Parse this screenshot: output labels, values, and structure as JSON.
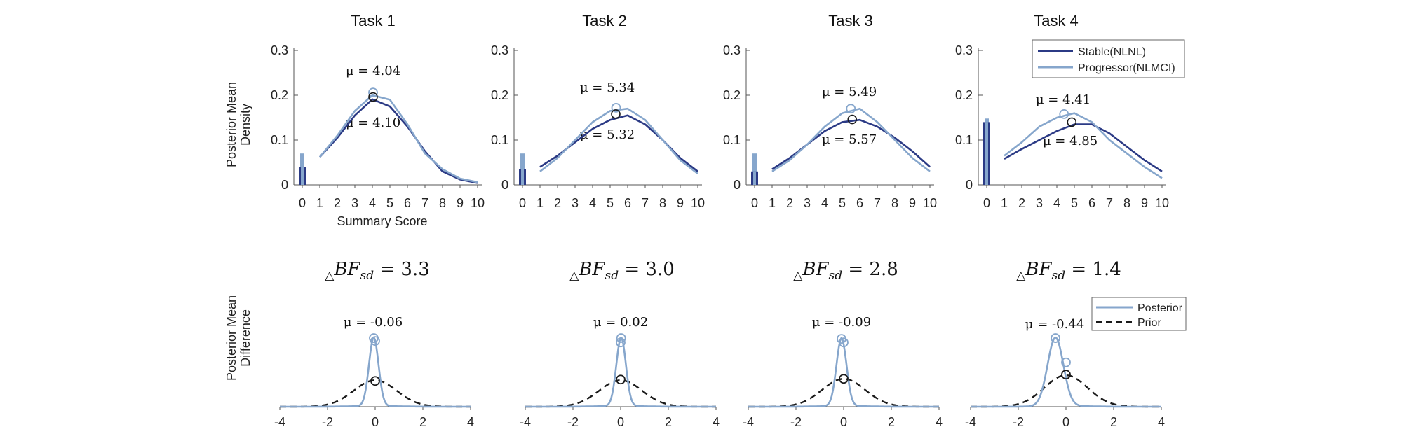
{
  "colors": {
    "stable": "#2b3a85",
    "progressor": "#86a6cc",
    "posterior": "#86a6cc",
    "prior": "#1a1a1a"
  },
  "top": {
    "ylabel": [
      "Posterior Mean",
      "Density"
    ],
    "xlabel": "Summary Score",
    "yticks": [
      "0",
      "0.1",
      "0.2",
      "0.3"
    ],
    "xticks": [
      "0",
      "1",
      "2",
      "3",
      "4",
      "5",
      "6",
      "7",
      "8",
      "9",
      "10"
    ],
    "legend": [
      "Stable(NLNL)",
      "Progressor(NLMCI)"
    ]
  },
  "bottom": {
    "ylabel": [
      "Posterior Mean",
      "Difference"
    ],
    "xticks": [
      "-4",
      "-2",
      "0",
      "2",
      "4"
    ],
    "legend": [
      "Posterior",
      "Prior"
    ],
    "bf_symbol": "BF",
    "bf_sub": "sd"
  },
  "chart_data": [
    {
      "type": "line",
      "title": "Task 1",
      "ylim": [
        0,
        0.3
      ],
      "xlim": [
        0,
        10
      ],
      "x": [
        1,
        2,
        3,
        4,
        5,
        6,
        7,
        8,
        9,
        10
      ],
      "zero_bars": {
        "stable": 0.04,
        "progressor": 0.07
      },
      "series": [
        {
          "name": "Stable(NLNL)",
          "values": [
            0.062,
            0.105,
            0.155,
            0.191,
            0.175,
            0.13,
            0.075,
            0.03,
            0.012,
            0.004
          ]
        },
        {
          "name": "Progressor(NLMCI)",
          "values": [
            0.062,
            0.11,
            0.165,
            0.2,
            0.19,
            0.135,
            0.07,
            0.035,
            0.014,
            0.006
          ]
        }
      ],
      "mean_markers": {
        "stable": [
          4.04,
          0.196
        ],
        "progressor": [
          4.04,
          0.206
        ]
      },
      "mu_top": "μ = 4.04",
      "mu_bottom": "μ = 4.10"
    },
    {
      "type": "line",
      "title": "Task 2",
      "ylim": [
        0,
        0.3
      ],
      "xlim": [
        0,
        10
      ],
      "x": [
        1,
        2,
        3,
        4,
        5,
        6,
        7,
        8,
        9,
        10
      ],
      "zero_bars": {
        "stable": 0.035,
        "progressor": 0.07
      },
      "series": [
        {
          "name": "Stable(NLNL)",
          "values": [
            0.04,
            0.065,
            0.095,
            0.125,
            0.145,
            0.155,
            0.135,
            0.1,
            0.06,
            0.03
          ]
        },
        {
          "name": "Progressor(NLMCI)",
          "values": [
            0.03,
            0.06,
            0.1,
            0.14,
            0.165,
            0.17,
            0.145,
            0.1,
            0.055,
            0.025
          ]
        }
      ],
      "mean_markers": {
        "stable": [
          5.32,
          0.158
        ],
        "progressor": [
          5.34,
          0.172
        ]
      },
      "mu_top": "μ = 5.34",
      "mu_bottom": "μ = 5.32"
    },
    {
      "type": "line",
      "title": "Task 3",
      "ylim": [
        0,
        0.3
      ],
      "xlim": [
        0,
        10
      ],
      "x": [
        1,
        2,
        3,
        4,
        5,
        6,
        7,
        8,
        9,
        10
      ],
      "zero_bars": {
        "stable": 0.03,
        "progressor": 0.07
      },
      "series": [
        {
          "name": "Stable(NLNL)",
          "values": [
            0.035,
            0.06,
            0.09,
            0.12,
            0.14,
            0.145,
            0.13,
            0.105,
            0.075,
            0.04
          ]
        },
        {
          "name": "Progressor(NLMCI)",
          "values": [
            0.03,
            0.055,
            0.09,
            0.13,
            0.16,
            0.17,
            0.14,
            0.1,
            0.06,
            0.03
          ]
        }
      ],
      "mean_markers": {
        "stable": [
          5.57,
          0.146
        ],
        "progressor": [
          5.49,
          0.17
        ]
      },
      "mu_top": "μ = 5.49",
      "mu_bottom": "μ = 5.57"
    },
    {
      "type": "line",
      "title": "Task 4",
      "ylim": [
        0,
        0.3
      ],
      "xlim": [
        0,
        10
      ],
      "x": [
        1,
        2,
        3,
        4,
        5,
        6,
        7,
        8,
        9,
        10
      ],
      "zero_bars": {
        "stable": 0.14,
        "progressor": 0.148
      },
      "series": [
        {
          "name": "Stable(NLNL)",
          "values": [
            0.058,
            0.08,
            0.1,
            0.12,
            0.135,
            0.135,
            0.115,
            0.085,
            0.055,
            0.03
          ]
        },
        {
          "name": "Progressor(NLMCI)",
          "values": [
            0.065,
            0.095,
            0.13,
            0.15,
            0.16,
            0.14,
            0.1,
            0.07,
            0.04,
            0.015
          ]
        }
      ],
      "mean_markers": {
        "stable": [
          4.85,
          0.14
        ],
        "progressor": [
          4.41,
          0.158
        ]
      },
      "mu_top": "μ = 4.41",
      "mu_bottom": "μ = 4.85"
    },
    {
      "type": "line",
      "title": "ΔBFsd = 3.3",
      "bf_value": "3.3",
      "xlim": [
        -4,
        4
      ],
      "mu": "μ = -0.06",
      "posterior_mean": -0.06,
      "posterior": {
        "sd": 0.2,
        "peak": 0.96
      },
      "prior": {
        "sd": 0.9,
        "peak": 0.37
      },
      "markers": {
        "posterior_at_zero": 0.92,
        "prior_at_zero": 0.36
      }
    },
    {
      "type": "line",
      "title": "ΔBFsd = 3.0",
      "bf_value": "3.0",
      "xlim": [
        -4,
        4
      ],
      "mu": "μ = 0.02",
      "posterior_mean": 0.02,
      "posterior": {
        "sd": 0.2,
        "peak": 0.96
      },
      "prior": {
        "sd": 0.9,
        "peak": 0.37
      },
      "markers": {
        "posterior_at_zero": 0.9,
        "prior_at_zero": 0.38
      }
    },
    {
      "type": "line",
      "title": "ΔBFsd = 2.8",
      "bf_value": "2.8",
      "xlim": [
        -4,
        4
      ],
      "mu": "μ = -0.09",
      "posterior_mean": -0.09,
      "posterior": {
        "sd": 0.21,
        "peak": 0.95
      },
      "prior": {
        "sd": 0.9,
        "peak": 0.39
      },
      "markers": {
        "posterior_at_zero": 0.9,
        "prior_at_zero": 0.39
      }
    },
    {
      "type": "line",
      "title": "ΔBFsd = 1.4",
      "bf_value": "1.4",
      "xlim": [
        -4,
        4
      ],
      "mu": "μ = -0.44",
      "posterior_mean": -0.44,
      "posterior": {
        "sd": 0.33,
        "peak": 0.96
      },
      "prior": {
        "sd": 0.9,
        "peak": 0.44
      },
      "markers": {
        "posterior_at_zero": 0.62,
        "prior_at_zero": 0.45
      }
    }
  ]
}
